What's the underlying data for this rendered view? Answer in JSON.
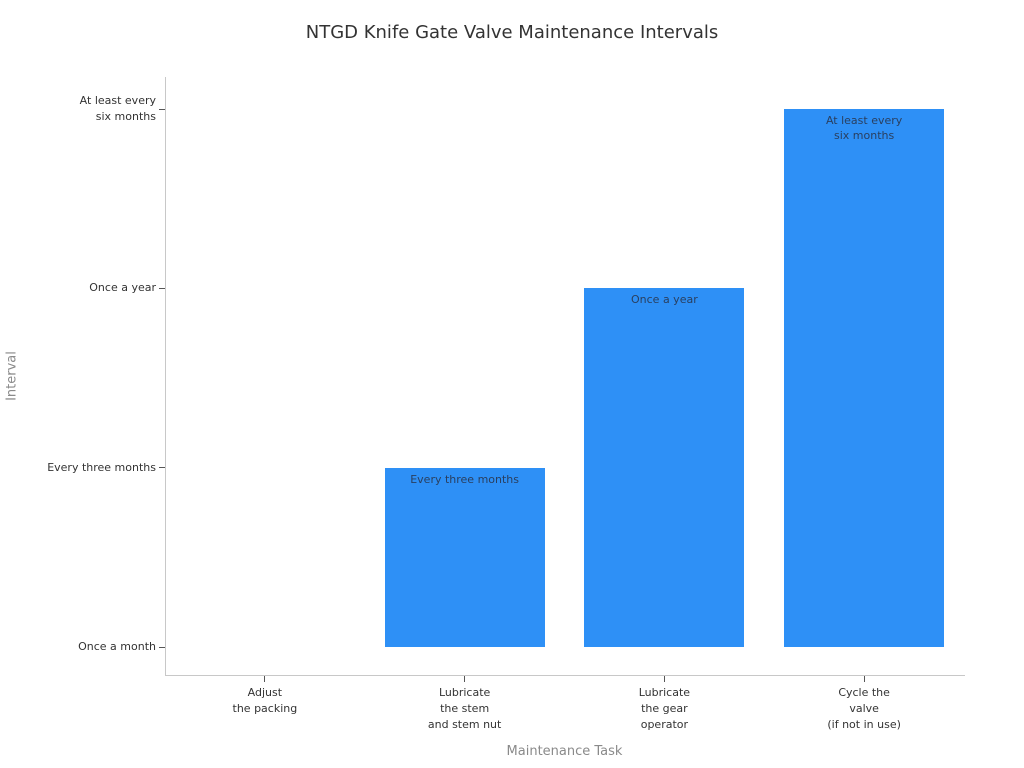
{
  "title": "NTGD Knife Gate Valve Maintenance Intervals",
  "chart_data": {
    "type": "bar",
    "title": "NTGD Knife Gate Valve Maintenance Intervals",
    "xlabel": "Maintenance Task",
    "ylabel": "Interval",
    "categories": [
      "Adjust\nthe packing",
      "Lubricate\nthe stem\nand stem nut",
      "Lubricate\nthe gear\noperator",
      "Cycle the\nvalve\n(if not in use)"
    ],
    "values": [
      "Once a month",
      "Every three months",
      "Once a year",
      "At least every six months"
    ],
    "values_ordinal": [
      0,
      1,
      2,
      3
    ],
    "y_order": [
      "Once a month",
      "Every three months",
      "Once a year",
      "At least every six months"
    ],
    "y_tick_labels": [
      "Once a month",
      "Every three months",
      "Once a year",
      "At least every\nsix months"
    ],
    "bar_labels": [
      "",
      "Every three months",
      "Once a year",
      "At least every\nsix months"
    ],
    "baseline": "Once a month",
    "legend": false,
    "grid": false,
    "colors": {
      "bar": "#2e90f6",
      "bar_label": "#2a3f5f",
      "tick_text": "#333333",
      "axis_title": "#8a8a8a",
      "spine": "#c8c8c8",
      "tick_mark": "#555555",
      "background": "#ffffff"
    }
  }
}
